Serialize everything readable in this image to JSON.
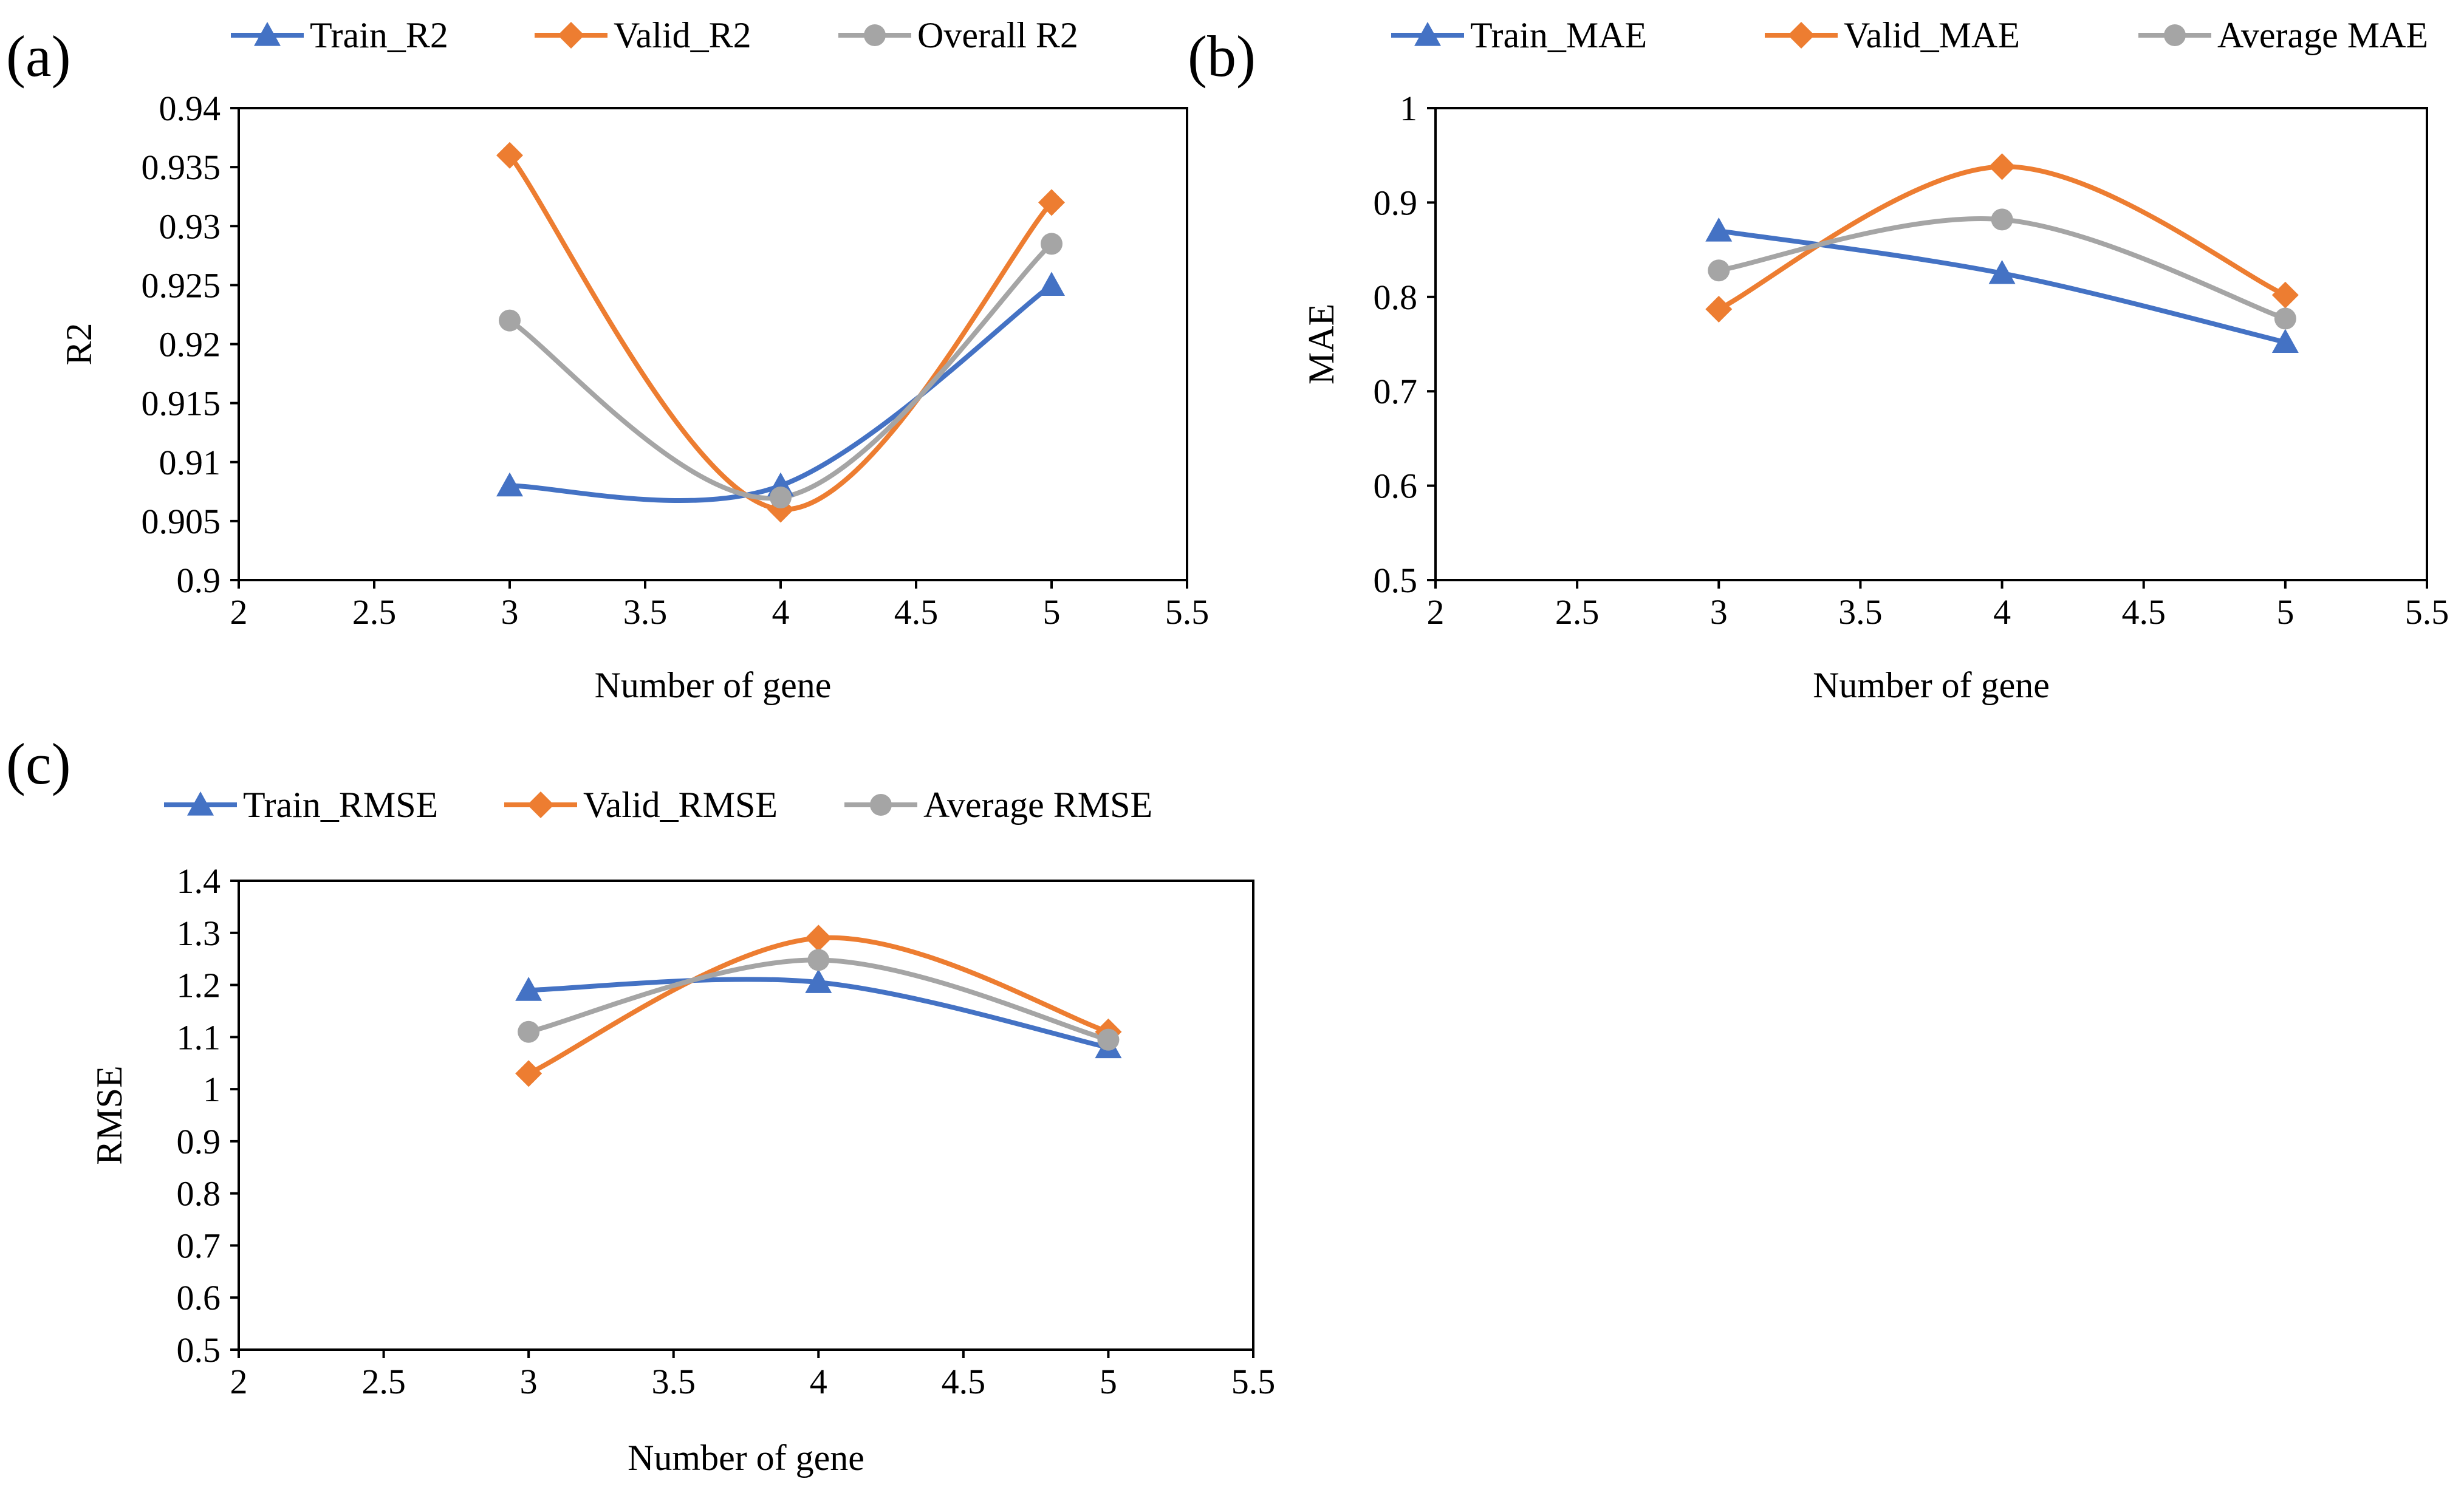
{
  "colors": {
    "train": "#4472C4",
    "valid": "#ED7D31",
    "overall": "#A5A5A5"
  },
  "chart_data": [
    {
      "type": "line",
      "panel_label": "(a)",
      "title": "",
      "xlabel": "Number of gene",
      "ylabel": "R2",
      "xlim": [
        2,
        5.5
      ],
      "ylim": [
        0.9,
        0.94
      ],
      "xticks": [
        2,
        2.5,
        3,
        3.5,
        4,
        4.5,
        5,
        5.5
      ],
      "xtick_labels": [
        "2",
        "2.5",
        "3",
        "3.5",
        "4",
        "4.5",
        "5",
        "5.5"
      ],
      "yticks": [
        0.9,
        0.905,
        0.91,
        0.915,
        0.92,
        0.925,
        0.93,
        0.935,
        0.94
      ],
      "ytick_labels": [
        "0.9",
        "0.905",
        "0.91",
        "0.915",
        "0.92",
        "0.925",
        "0.93",
        "0.935",
        "0.94"
      ],
      "x": [
        3,
        4,
        5
      ],
      "series": [
        {
          "name": "Train_R2",
          "marker": "triangle",
          "color": "#4472C4",
          "values": [
            0.908,
            0.908,
            0.925
          ]
        },
        {
          "name": "Valid_R2",
          "marker": "diamond",
          "color": "#ED7D31",
          "values": [
            0.936,
            0.906,
            0.932
          ]
        },
        {
          "name": "Overall R2",
          "marker": "circle",
          "color": "#A5A5A5",
          "values": [
            0.922,
            0.907,
            0.9285
          ]
        }
      ],
      "legend_position": "top",
      "grid": false
    },
    {
      "type": "line",
      "panel_label": "(b)",
      "title": "",
      "xlabel": "Number of gene",
      "ylabel": "MAE",
      "xlim": [
        2,
        5.5
      ],
      "ylim": [
        0.5,
        1
      ],
      "xticks": [
        2,
        2.5,
        3,
        3.5,
        4,
        4.5,
        5,
        5.5
      ],
      "xtick_labels": [
        "2",
        "2.5",
        "3",
        "3.5",
        "4",
        "4.5",
        "5",
        "5.5"
      ],
      "yticks": [
        0.5,
        0.6,
        0.7,
        0.8,
        0.9,
        1
      ],
      "ytick_labels": [
        "0.5",
        "0.6",
        "0.7",
        "0.8",
        "0.9",
        "1"
      ],
      "x": [
        3,
        4,
        5
      ],
      "series": [
        {
          "name": "Train_MAE",
          "marker": "triangle",
          "color": "#4472C4",
          "values": [
            0.87,
            0.825,
            0.752
          ]
        },
        {
          "name": "Valid_MAE",
          "marker": "diamond",
          "color": "#ED7D31",
          "values": [
            0.787,
            0.938,
            0.802
          ]
        },
        {
          "name": "Average MAE",
          "marker": "circle",
          "color": "#A5A5A5",
          "values": [
            0.828,
            0.882,
            0.777
          ]
        }
      ],
      "legend_position": "top",
      "grid": false
    },
    {
      "type": "line",
      "panel_label": "(c)",
      "title": "",
      "xlabel": "Number of gene",
      "ylabel": "RMSE",
      "xlim": [
        2,
        5.5
      ],
      "ylim": [
        0.5,
        1.4
      ],
      "xticks": [
        2,
        2.5,
        3,
        3.5,
        4,
        4.5,
        5,
        5.5
      ],
      "xtick_labels": [
        "2",
        "2.5",
        "3",
        "3.5",
        "4",
        "4.5",
        "5",
        "5.5"
      ],
      "yticks": [
        0.5,
        0.6,
        0.7,
        0.8,
        0.9,
        1,
        1.1,
        1.2,
        1.3,
        1.4
      ],
      "ytick_labels": [
        "0.5",
        "0.6",
        "0.7",
        "0.8",
        "0.9",
        "1",
        "1.1",
        "1.2",
        "1.3",
        "1.4"
      ],
      "x": [
        3,
        4,
        5
      ],
      "series": [
        {
          "name": "Train_RMSE",
          "marker": "triangle",
          "color": "#4472C4",
          "values": [
            1.19,
            1.205,
            1.08
          ]
        },
        {
          "name": "Valid_RMSE",
          "marker": "diamond",
          "color": "#ED7D31",
          "values": [
            1.03,
            1.29,
            1.11
          ]
        },
        {
          "name": "Average RMSE",
          "marker": "circle",
          "color": "#A5A5A5",
          "values": [
            1.11,
            1.248,
            1.095
          ]
        }
      ],
      "legend_position": "top",
      "grid": false
    }
  ]
}
